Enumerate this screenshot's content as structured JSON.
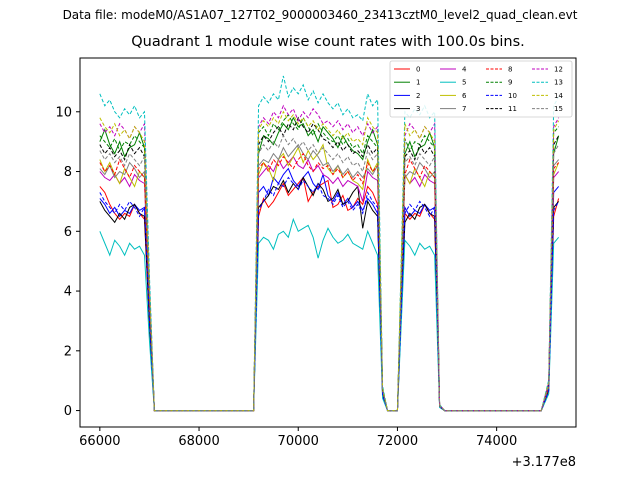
{
  "figure": {
    "suptitle": "Data file: modeM0/AS1A07_127T02_9000003460_23413cztM0_level2_quad_clean.evt",
    "title": "Quadrant 1 module wise count rates with 100.0s bins."
  },
  "chart_data": {
    "type": "line",
    "title": "Quadrant 1 module wise count rates with 100.0s bins.",
    "xlabel": "",
    "ylabel": "",
    "x_offset_label": "+3.177e8",
    "xlim": [
      65600,
      75600
    ],
    "ylim": [
      -0.55,
      11.8
    ],
    "xticks": [
      66000,
      68000,
      70000,
      72000,
      74000
    ],
    "xtick_labels": [
      "66000",
      "68000",
      "70000",
      "72000",
      "74000"
    ],
    "yticks": [
      0,
      2,
      4,
      6,
      8,
      10
    ],
    "ytick_labels": [
      "0",
      "2",
      "4",
      "6",
      "8",
      "10"
    ],
    "grid": false,
    "legend_position": "top-right",
    "segments": [
      {
        "x_start": 66000,
        "x_end": 66900,
        "step": 100
      },
      {
        "x_start": 69200,
        "x_end": 71600,
        "step": 100
      },
      {
        "x_start": 72150,
        "x_end": 72750,
        "step": 100
      },
      {
        "x_start": 75150,
        "x_end": 75250,
        "step": 100
      }
    ],
    "gaps": [
      {
        "x": [
          66900,
          67000,
          67100,
          69100,
          69200
        ],
        "y_factor": [
          1,
          0.45,
          0,
          0,
          0.1
        ]
      },
      {
        "x": [
          71600,
          71700,
          71800,
          72000,
          72150
        ],
        "y_factor": [
          1,
          0.08,
          0,
          0,
          0.95
        ]
      },
      {
        "x": [
          72750,
          72850,
          72950,
          74900,
          75050,
          75150
        ],
        "y_factor": [
          1,
          0.02,
          0,
          0,
          0.1,
          1
        ]
      }
    ],
    "series": [
      {
        "name": "0",
        "color": "#ff0000",
        "dash": "solid",
        "values": [
          7.5,
          7.3,
          6.9,
          6.6,
          6.4,
          6.6,
          6.5,
          6.9,
          6.6,
          6.4,
          6.5,
          7.1,
          6.8,
          7.0,
          7.3,
          7.6,
          7.2,
          7.4,
          7.6,
          7.8,
          7.0,
          7.3,
          7.5,
          7.6,
          7.7,
          6.8,
          6.9,
          7.2,
          6.7,
          6.8,
          7.1,
          6.9
        ]
      },
      {
        "name": "1",
        "color": "#008000",
        "dash": "solid",
        "values": [
          9.0,
          9.4,
          8.9,
          8.6,
          9.0,
          8.5,
          8.8,
          8.9,
          9.3,
          8.8,
          8.6,
          9.2,
          9.1,
          8.9,
          9.3,
          9.6,
          9.4,
          9.8,
          9.5,
          9.6,
          9.2,
          9.4,
          9.0,
          9.5,
          9.3,
          9.1,
          8.8,
          9.2,
          8.9,
          8.7,
          8.6,
          8.4
        ]
      },
      {
        "name": "2",
        "color": "#0000ff",
        "dash": "solid",
        "values": [
          7.1,
          6.9,
          6.6,
          6.8,
          6.5,
          6.7,
          6.6,
          6.9,
          6.7,
          6.8,
          7.3,
          7.5,
          7.2,
          7.8,
          7.6,
          7.9,
          8.1,
          7.7,
          7.5,
          7.8,
          8.0,
          7.6,
          7.4,
          7.9,
          7.2,
          7.0,
          7.3,
          6.9,
          7.1,
          6.8,
          7.0,
          6.7
        ]
      },
      {
        "name": "3",
        "color": "#000000",
        "dash": "solid",
        "values": [
          7.0,
          6.7,
          6.5,
          6.3,
          6.6,
          6.4,
          6.8,
          6.9,
          6.6,
          6.5,
          6.8,
          7.0,
          7.2,
          7.5,
          7.4,
          7.7,
          7.3,
          7.6,
          7.4,
          7.8,
          7.5,
          7.2,
          7.6,
          7.4,
          7.0,
          7.1,
          7.4,
          6.9,
          7.0,
          7.3,
          7.5,
          6.1
        ]
      },
      {
        "name": "4",
        "color": "#bf00bf",
        "dash": "solid",
        "values": [
          8.0,
          7.8,
          7.7,
          7.9,
          7.6,
          7.8,
          7.5,
          7.9,
          7.7,
          7.6,
          7.8,
          8.0,
          8.2,
          8.0,
          8.4,
          8.1,
          8.3,
          8.5,
          8.2,
          8.1,
          8.4,
          8.0,
          8.2,
          7.9,
          7.8,
          7.6,
          7.8,
          7.5,
          7.7,
          7.6,
          7.5,
          7.0
        ]
      },
      {
        "name": "5",
        "color": "#00bfbf",
        "dash": "solid",
        "values": [
          6.0,
          5.6,
          5.2,
          5.7,
          5.5,
          5.2,
          5.6,
          5.4,
          5.5,
          5.2,
          5.6,
          5.8,
          5.7,
          5.4,
          5.9,
          6.0,
          5.8,
          6.4,
          6.0,
          6.1,
          6.2,
          5.8,
          5.1,
          5.7,
          6.1,
          5.8,
          5.6,
          5.7,
          5.9,
          5.6,
          5.5,
          5.4
        ]
      },
      {
        "name": "6",
        "color": "#bfbf00",
        "dash": "solid",
        "values": [
          8.4,
          8.0,
          8.3,
          7.9,
          7.6,
          8.1,
          7.8,
          7.5,
          8.0,
          7.8,
          7.9,
          8.3,
          8.1,
          7.7,
          8.4,
          8.6,
          8.2,
          8.5,
          8.8,
          8.3,
          8.7,
          8.4,
          8.6,
          8.9,
          8.1,
          7.9,
          8.2,
          7.8,
          8.0,
          7.7,
          7.6,
          7.4
        ]
      },
      {
        "name": "7",
        "color": "#808080",
        "dash": "solid",
        "values": [
          8.1,
          7.9,
          8.2,
          7.8,
          8.0,
          7.9,
          8.3,
          8.1,
          7.8,
          8.0,
          8.2,
          8.4,
          8.3,
          8.6,
          8.4,
          8.8,
          8.5,
          8.7,
          8.9,
          8.6,
          8.4,
          8.7,
          8.5,
          8.2,
          8.3,
          8.0,
          8.2,
          7.9,
          8.1,
          7.8,
          8.0,
          7.8
        ]
      },
      {
        "name": "8",
        "color": "#ff0000",
        "dash": "dashed",
        "values": [
          8.3,
          8.0,
          8.2,
          7.9,
          8.4,
          8.1,
          7.8,
          8.2,
          8.0,
          7.8,
          8.1,
          8.3,
          8.0,
          8.4,
          8.2,
          8.5,
          8.3,
          8.1,
          8.4,
          8.6,
          8.2,
          8.0,
          8.3,
          8.1,
          8.2,
          7.9,
          8.1,
          7.8,
          8.0,
          7.7,
          7.9,
          7.6
        ]
      },
      {
        "name": "9",
        "color": "#008000",
        "dash": "dashed",
        "values": [
          9.2,
          9.0,
          8.8,
          9.1,
          8.7,
          9.0,
          8.9,
          9.2,
          9.0,
          8.8,
          9.3,
          9.5,
          9.2,
          9.6,
          9.4,
          9.7,
          9.9,
          9.6,
          9.4,
          9.8,
          9.5,
          9.2,
          9.6,
          9.3,
          9.1,
          9.0,
          9.2,
          8.9,
          9.1,
          8.8,
          8.9,
          8.6
        ]
      },
      {
        "name": "10",
        "color": "#0000ff",
        "dash": "dashed",
        "values": [
          7.3,
          7.0,
          6.8,
          6.6,
          6.9,
          6.7,
          7.0,
          6.8,
          6.5,
          6.8,
          6.7,
          7.0,
          7.4,
          7.2,
          7.6,
          7.5,
          7.8,
          7.6,
          7.4,
          7.7,
          7.5,
          7.3,
          7.6,
          7.2,
          7.1,
          6.9,
          7.2,
          6.8,
          7.0,
          6.7,
          6.9,
          6.6
        ]
      },
      {
        "name": "11",
        "color": "#000000",
        "dash": "dashed",
        "values": [
          8.9,
          8.6,
          8.8,
          8.5,
          8.7,
          8.4,
          8.9,
          8.6,
          8.8,
          8.5,
          8.9,
          9.2,
          9.0,
          9.3,
          9.5,
          9.2,
          9.6,
          9.4,
          9.8,
          9.5,
          9.3,
          9.6,
          9.4,
          9.1,
          9.0,
          8.8,
          9.0,
          8.7,
          8.9,
          8.6,
          8.7,
          8.5
        ]
      },
      {
        "name": "12",
        "color": "#bf00bf",
        "dash": "dashed",
        "values": [
          9.6,
          9.3,
          9.5,
          9.2,
          9.6,
          9.4,
          9.1,
          9.5,
          9.3,
          9.6,
          9.5,
          9.8,
          9.6,
          10.0,
          9.8,
          10.2,
          9.9,
          10.1,
          9.7,
          10.0,
          9.8,
          10.1,
          9.9,
          9.6,
          9.7,
          9.5,
          9.7,
          9.4,
          9.6,
          9.3,
          9.5,
          9.2
        ]
      },
      {
        "name": "13",
        "color": "#00bfbf",
        "dash": "dashed",
        "values": [
          10.6,
          10.2,
          10.4,
          10.0,
          9.8,
          10.1,
          9.9,
          10.2,
          9.8,
          10.0,
          10.2,
          10.5,
          10.3,
          10.6,
          10.4,
          11.2,
          10.5,
          10.8,
          10.6,
          10.9,
          10.4,
          10.7,
          10.3,
          10.6,
          10.3,
          10.1,
          10.3,
          9.9,
          10.1,
          9.8,
          9.9,
          9.7
        ]
      },
      {
        "name": "14",
        "color": "#bfbf00",
        "dash": "dashed",
        "values": [
          9.8,
          9.5,
          9.3,
          9.6,
          9.2,
          9.4,
          9.1,
          9.5,
          9.3,
          9.0,
          9.4,
          9.7,
          9.5,
          9.8,
          9.6,
          10.0,
          9.7,
          9.9,
          9.6,
          9.8,
          9.5,
          9.7,
          9.4,
          9.6,
          9.4,
          9.2,
          9.4,
          9.1,
          9.3,
          9.0,
          9.1,
          8.9
        ]
      },
      {
        "name": "15",
        "color": "#808080",
        "dash": "dashed",
        "values": [
          8.7,
          8.4,
          8.6,
          8.3,
          8.5,
          8.2,
          8.6,
          8.4,
          8.2,
          8.5,
          8.6,
          8.9,
          8.7,
          9.0,
          8.8,
          9.2,
          8.9,
          9.1,
          8.8,
          9.0,
          8.7,
          8.9,
          8.6,
          8.8,
          8.6,
          8.4,
          8.6,
          8.3,
          8.5,
          8.2,
          8.3,
          8.0
        ]
      }
    ]
  }
}
